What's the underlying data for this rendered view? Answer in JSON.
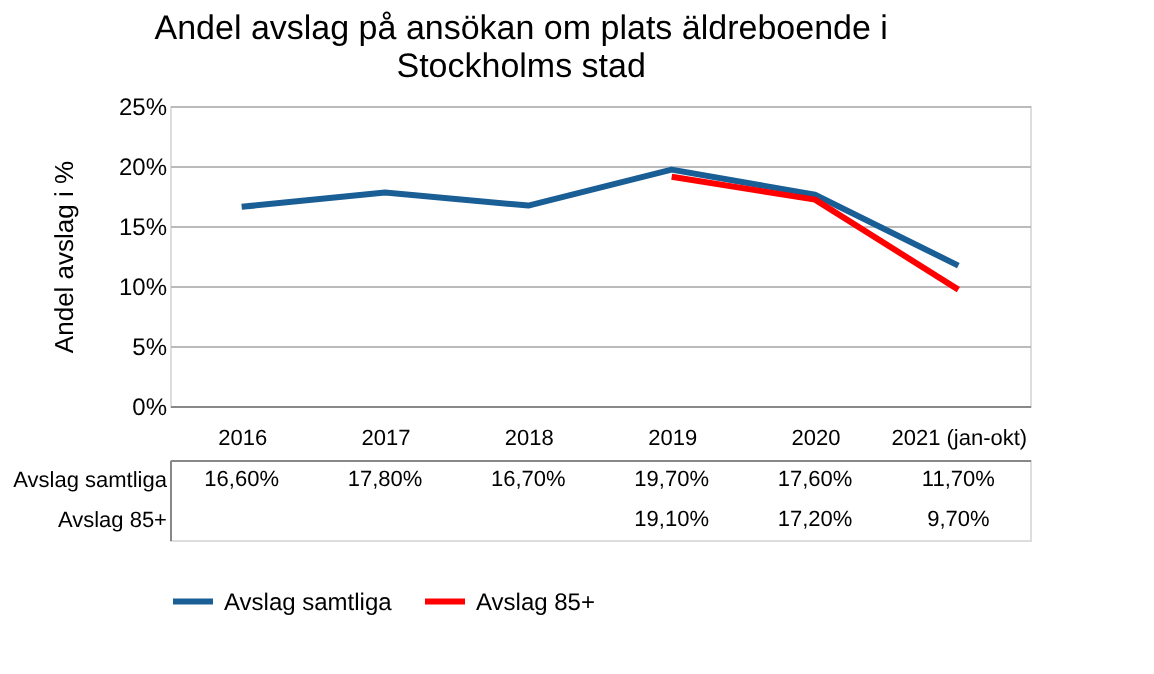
{
  "chart_data": {
    "type": "line",
    "title": "Andel avslag på ansökan om plats äldreboende i Stockholms stad",
    "ylabel": "Andel avslag i %",
    "categories": [
      "2016",
      "2017",
      "2018",
      "2019",
      "2020",
      "2021 (jan-okt)"
    ],
    "series": [
      {
        "name": "Avslag samtliga",
        "color": "#1a5e96",
        "values": [
          16.6,
          17.8,
          16.7,
          19.7,
          17.6,
          11.7
        ],
        "value_labels": [
          "16,60%",
          "17,80%",
          "16,70%",
          "19,70%",
          "17,60%",
          "11,70%"
        ]
      },
      {
        "name": "Avslag 85+",
        "color": "#ff0000",
        "values": [
          null,
          null,
          null,
          19.1,
          17.2,
          9.7
        ],
        "value_labels": [
          null,
          null,
          null,
          "19,10%",
          "17,20%",
          "9,70%"
        ]
      }
    ],
    "ylim": [
      0,
      25
    ],
    "yticks": [
      {
        "value": 0,
        "label": "0%"
      },
      {
        "value": 5,
        "label": "5%"
      },
      {
        "value": 10,
        "label": "10%"
      },
      {
        "value": 15,
        "label": "15%"
      },
      {
        "value": 20,
        "label": "20%"
      },
      {
        "value": 25,
        "label": "25%"
      }
    ],
    "grid": "y",
    "legend": "bottom",
    "marker": "none",
    "line_style": "solid"
  }
}
